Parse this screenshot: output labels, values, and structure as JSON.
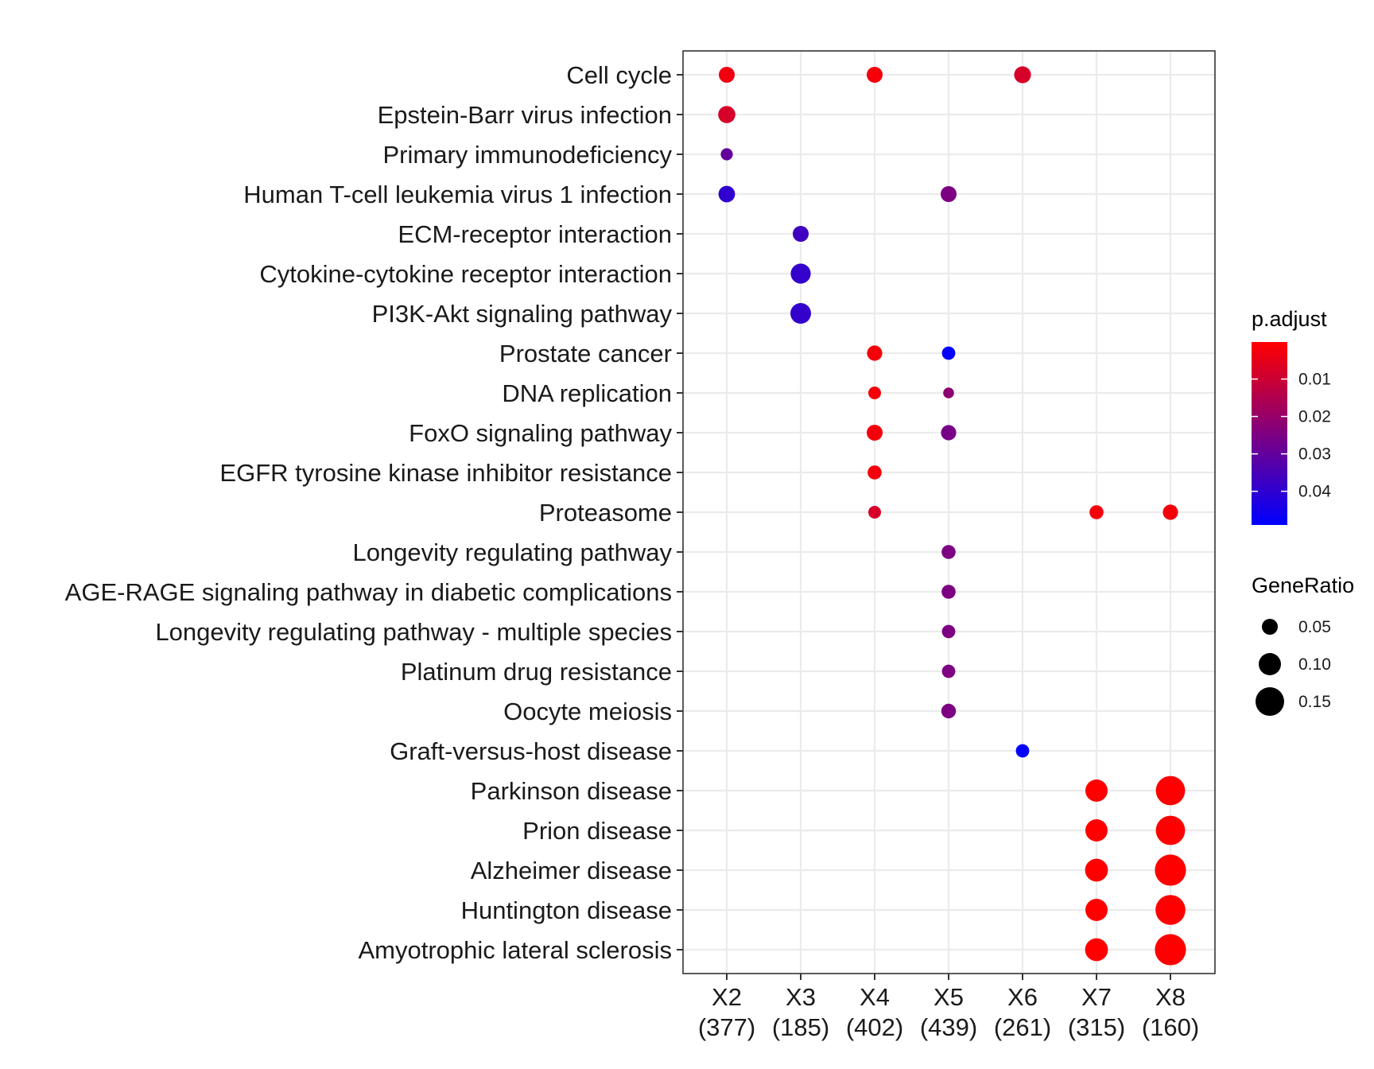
{
  "chart_data": {
    "type": "scatter",
    "clusters": [
      {
        "name": "X2",
        "count": "(377)"
      },
      {
        "name": "X3",
        "count": "(185)"
      },
      {
        "name": "X4",
        "count": "(402)"
      },
      {
        "name": "X5",
        "count": "(439)"
      },
      {
        "name": "X6",
        "count": "(261)"
      },
      {
        "name": "X7",
        "count": "(315)"
      },
      {
        "name": "X8",
        "count": "(160)"
      }
    ],
    "pathways": [
      "Cell cycle",
      "Epstein-Barr virus infection",
      "Primary immunodeficiency",
      "Human T-cell leukemia virus 1 infection",
      "ECM-receptor interaction",
      "Cytokine-cytokine receptor interaction",
      "PI3K-Akt signaling pathway",
      "Prostate cancer",
      "DNA replication",
      "FoxO signaling pathway",
      "EGFR tyrosine kinase inhibitor resistance",
      "Proteasome",
      "Longevity regulating pathway",
      "AGE-RAGE signaling pathway in diabetic complications",
      "Longevity regulating pathway - multiple species",
      "Platinum drug resistance",
      "Oocyte meiosis",
      "Graft-versus-host disease",
      "Parkinson disease",
      "Prion disease",
      "Alzheimer disease",
      "Huntington disease",
      "Amyotrophic lateral sclerosis"
    ],
    "points": [
      {
        "cluster": "X2",
        "pathway": "Cell cycle",
        "gene_ratio": 0.05,
        "p_adjust": 0.003
      },
      {
        "cluster": "X4",
        "pathway": "Cell cycle",
        "gene_ratio": 0.05,
        "p_adjust": 0.002
      },
      {
        "cluster": "X6",
        "pathway": "Cell cycle",
        "gene_ratio": 0.057,
        "p_adjust": 0.008
      },
      {
        "cluster": "X2",
        "pathway": "Epstein-Barr virus infection",
        "gene_ratio": 0.06,
        "p_adjust": 0.008
      },
      {
        "cluster": "X2",
        "pathway": "Primary immunodeficiency",
        "gene_ratio": 0.02,
        "p_adjust": 0.03
      },
      {
        "cluster": "X2",
        "pathway": "Human T-cell leukemia virus 1 infection",
        "gene_ratio": 0.055,
        "p_adjust": 0.04
      },
      {
        "cluster": "X5",
        "pathway": "Human T-cell leukemia virus 1 infection",
        "gene_ratio": 0.05,
        "p_adjust": 0.025
      },
      {
        "cluster": "X3",
        "pathway": "ECM-receptor interaction",
        "gene_ratio": 0.05,
        "p_adjust": 0.037
      },
      {
        "cluster": "X3",
        "pathway": "Cytokine-cytokine receptor interaction",
        "gene_ratio": 0.083,
        "p_adjust": 0.039
      },
      {
        "cluster": "X3",
        "pathway": "PI3K-Akt signaling pathway",
        "gene_ratio": 0.088,
        "p_adjust": 0.039
      },
      {
        "cluster": "X4",
        "pathway": "Prostate cancer",
        "gene_ratio": 0.045,
        "p_adjust": 0.002
      },
      {
        "cluster": "X5",
        "pathway": "Prostate cancer",
        "gene_ratio": 0.03,
        "p_adjust": 0.048
      },
      {
        "cluster": "X4",
        "pathway": "DNA replication",
        "gene_ratio": 0.025,
        "p_adjust": 0.002
      },
      {
        "cluster": "X5",
        "pathway": "DNA replication",
        "gene_ratio": 0.01,
        "p_adjust": 0.022
      },
      {
        "cluster": "X4",
        "pathway": "FoxO signaling pathway",
        "gene_ratio": 0.05,
        "p_adjust": 0.002
      },
      {
        "cluster": "X5",
        "pathway": "FoxO signaling pathway",
        "gene_ratio": 0.045,
        "p_adjust": 0.026
      },
      {
        "cluster": "X4",
        "pathway": "EGFR tyrosine kinase inhibitor resistance",
        "gene_ratio": 0.035,
        "p_adjust": 0.002
      },
      {
        "cluster": "X4",
        "pathway": "Proteasome",
        "gene_ratio": 0.025,
        "p_adjust": 0.008
      },
      {
        "cluster": "X7",
        "pathway": "Proteasome",
        "gene_ratio": 0.035,
        "p_adjust": 0.002
      },
      {
        "cluster": "X8",
        "pathway": "Proteasome",
        "gene_ratio": 0.045,
        "p_adjust": 0.002
      },
      {
        "cluster": "X5",
        "pathway": "Longevity regulating pathway",
        "gene_ratio": 0.035,
        "p_adjust": 0.025
      },
      {
        "cluster": "X5",
        "pathway": "AGE-RAGE signaling pathway in diabetic complications",
        "gene_ratio": 0.035,
        "p_adjust": 0.025
      },
      {
        "cluster": "X5",
        "pathway": "Longevity regulating pathway - multiple species",
        "gene_ratio": 0.03,
        "p_adjust": 0.025
      },
      {
        "cluster": "X5",
        "pathway": "Platinum drug resistance",
        "gene_ratio": 0.03,
        "p_adjust": 0.025
      },
      {
        "cluster": "X5",
        "pathway": "Oocyte meiosis",
        "gene_ratio": 0.04,
        "p_adjust": 0.025
      },
      {
        "cluster": "X6",
        "pathway": "Graft-versus-host disease",
        "gene_ratio": 0.03,
        "p_adjust": 0.049
      },
      {
        "cluster": "X7",
        "pathway": "Parkinson disease",
        "gene_ratio": 0.1,
        "p_adjust": 0.0001
      },
      {
        "cluster": "X8",
        "pathway": "Parkinson disease",
        "gene_ratio": 0.155,
        "p_adjust": 0.0001
      },
      {
        "cluster": "X7",
        "pathway": "Prion disease",
        "gene_ratio": 0.1,
        "p_adjust": 0.0001
      },
      {
        "cluster": "X8",
        "pathway": "Prion disease",
        "gene_ratio": 0.155,
        "p_adjust": 0.0001
      },
      {
        "cluster": "X7",
        "pathway": "Alzheimer disease",
        "gene_ratio": 0.105,
        "p_adjust": 0.0001
      },
      {
        "cluster": "X8",
        "pathway": "Alzheimer disease",
        "gene_ratio": 0.17,
        "p_adjust": 0.0001
      },
      {
        "cluster": "X7",
        "pathway": "Huntington disease",
        "gene_ratio": 0.1,
        "p_adjust": 0.0001
      },
      {
        "cluster": "X8",
        "pathway": "Huntington disease",
        "gene_ratio": 0.16,
        "p_adjust": 0.0001
      },
      {
        "cluster": "X7",
        "pathway": "Amyotrophic lateral sclerosis",
        "gene_ratio": 0.105,
        "p_adjust": 0.0001
      },
      {
        "cluster": "X8",
        "pathway": "Amyotrophic lateral sclerosis",
        "gene_ratio": 0.17,
        "p_adjust": 0.0001
      }
    ],
    "color_legend": {
      "title": "p.adjust",
      "ticks": [
        "0.01",
        "0.02",
        "0.03",
        "0.04"
      ],
      "tick_values": [
        0.01,
        0.02,
        0.03,
        0.04
      ],
      "range": [
        0.0001,
        0.049
      ],
      "low_color": "#ff0000",
      "high_color": "#0000ff"
    },
    "size_legend": {
      "title": "GeneRatio",
      "ticks": [
        "0.05",
        "0.10",
        "0.15"
      ],
      "tick_values": [
        0.05,
        0.1,
        0.15
      ]
    },
    "grid": true,
    "legend_position": "right"
  }
}
